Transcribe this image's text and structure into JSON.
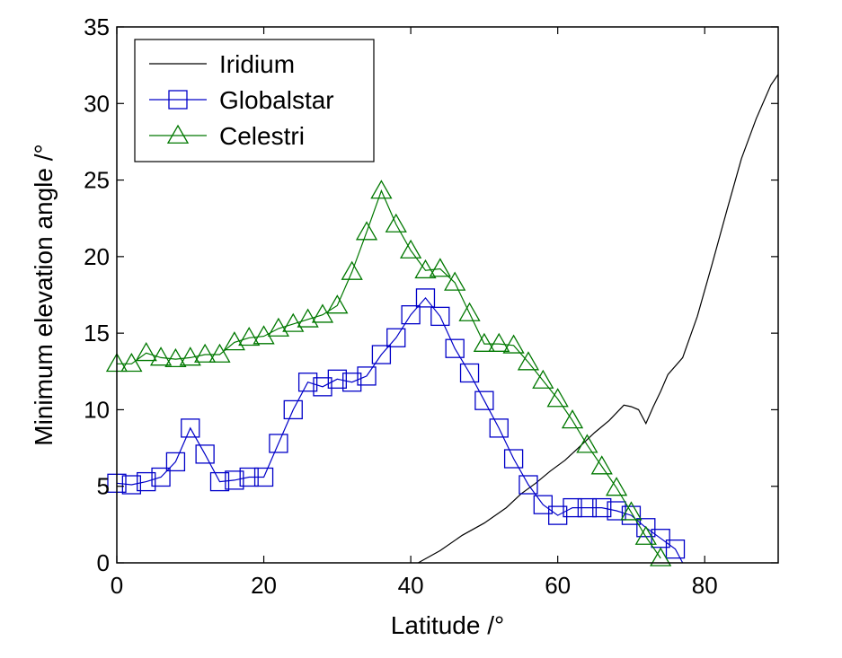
{
  "chart_data": {
    "type": "line",
    "xlabel": "Latitude /°",
    "ylabel": "Minimum elevation angle /°",
    "xlim": [
      0,
      90
    ],
    "ylim": [
      0,
      35
    ],
    "xticks": [
      0,
      20,
      40,
      60,
      80
    ],
    "yticks": [
      0,
      5,
      10,
      15,
      20,
      25,
      30,
      35
    ],
    "grid": false,
    "legend_position": "top-left",
    "series": [
      {
        "name": "Iridium",
        "color": "#000000",
        "marker": "none",
        "x": [
          41,
          44,
          47,
          50,
          53,
          55,
          57,
          59,
          61,
          63,
          65,
          67,
          69,
          70,
          71,
          72,
          73,
          74,
          75,
          77,
          79,
          81,
          83,
          85,
          87,
          89,
          90
        ],
        "y": [
          0,
          0.8,
          1.8,
          2.6,
          3.6,
          4.5,
          5.2,
          6.0,
          6.7,
          7.6,
          8.5,
          9.3,
          10.3,
          10.2,
          10.0,
          9.1,
          10.2,
          11.2,
          12.3,
          13.4,
          16.1,
          19.5,
          23.0,
          26.4,
          29.0,
          31.2,
          31.9
        ]
      },
      {
        "name": "Globalstar",
        "color": "#0000c8",
        "marker": "square",
        "x": [
          0,
          2,
          4,
          6,
          8,
          10,
          12,
          14,
          16,
          18,
          20,
          22,
          24,
          26,
          28,
          30,
          32,
          34,
          36,
          38,
          40,
          42,
          44,
          46,
          48,
          50,
          52,
          54,
          56,
          58,
          60,
          62,
          64,
          66,
          68,
          70,
          72,
          74,
          76,
          77
        ],
        "y": [
          5.2,
          5.1,
          5.3,
          5.6,
          6.6,
          8.8,
          7.1,
          5.3,
          5.4,
          5.6,
          5.6,
          7.8,
          10.0,
          11.8,
          11.5,
          12.0,
          11.8,
          12.2,
          13.6,
          14.7,
          16.2,
          17.3,
          16.1,
          14.0,
          12.4,
          10.6,
          8.8,
          6.8,
          5.1,
          3.8,
          3.1,
          3.6,
          3.6,
          3.6,
          3.4,
          3.1,
          2.3,
          1.6,
          0.9,
          0
        ]
      },
      {
        "name": "Celestri",
        "color": "#007800",
        "marker": "triangle",
        "x": [
          0,
          2,
          4,
          6,
          8,
          10,
          12,
          14,
          16,
          18,
          20,
          22,
          24,
          26,
          28,
          30,
          32,
          34,
          36,
          38,
          40,
          42,
          44,
          46,
          48,
          50,
          52,
          54,
          56,
          58,
          60,
          62,
          64,
          66,
          68,
          70,
          72,
          74
        ],
        "y": [
          13.0,
          13.0,
          13.7,
          13.4,
          13.3,
          13.4,
          13.6,
          13.6,
          14.4,
          14.7,
          14.8,
          15.3,
          15.6,
          15.9,
          16.2,
          16.8,
          19.0,
          21.6,
          24.3,
          22.1,
          20.4,
          19.1,
          19.2,
          18.3,
          16.3,
          14.3,
          14.3,
          14.2,
          13.1,
          11.9,
          10.7,
          9.3,
          7.7,
          6.3,
          4.9,
          3.3,
          1.7,
          0.3
        ]
      }
    ]
  }
}
